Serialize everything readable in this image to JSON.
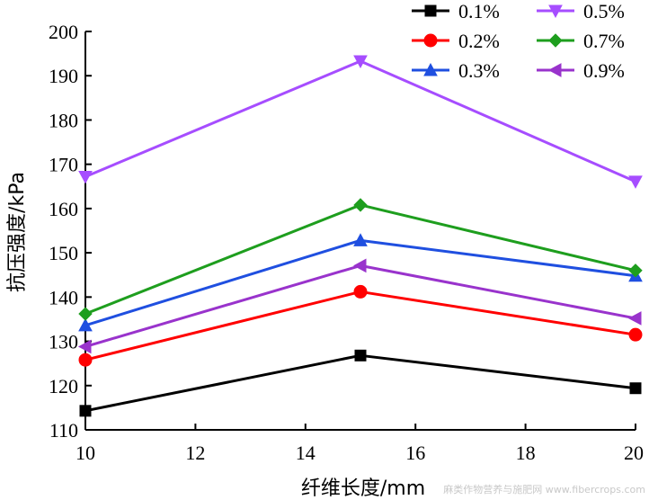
{
  "chart_data": {
    "type": "line",
    "xlabel": "纤维长度/mm",
    "ylabel": "抗压强度/kPa",
    "xlim": [
      10,
      20
    ],
    "ylim": [
      110,
      200
    ],
    "xticks": [
      10,
      12,
      14,
      16,
      18,
      20
    ],
    "yticks": [
      110,
      120,
      130,
      140,
      150,
      160,
      170,
      180,
      190,
      200
    ],
    "grid": false,
    "legend_position": "top-right",
    "x": [
      10,
      15,
      20
    ],
    "series": [
      {
        "name": "0.1%",
        "values": [
          114.3,
          126.8,
          119.4
        ],
        "color": "#000000",
        "marker": "square"
      },
      {
        "name": "0.2%",
        "values": [
          125.8,
          141.2,
          131.5
        ],
        "color": "#ff0000",
        "marker": "circle"
      },
      {
        "name": "0.3%",
        "values": [
          133.6,
          152.8,
          144.8
        ],
        "color": "#1f4fe0",
        "marker": "triangle-up"
      },
      {
        "name": "0.5%",
        "values": [
          167.2,
          193.3,
          166.1
        ],
        "color": "#a64dff",
        "marker": "triangle-down"
      },
      {
        "name": "0.7%",
        "values": [
          136.2,
          160.8,
          146.0
        ],
        "color": "#1e9e1e",
        "marker": "diamond"
      },
      {
        "name": "0.9%",
        "values": [
          128.8,
          147.1,
          135.2
        ],
        "color": "#9933cc",
        "marker": "triangle-left"
      }
    ]
  },
  "watermark": "麻类作物营养与施肥网 www.fibercrops.com"
}
